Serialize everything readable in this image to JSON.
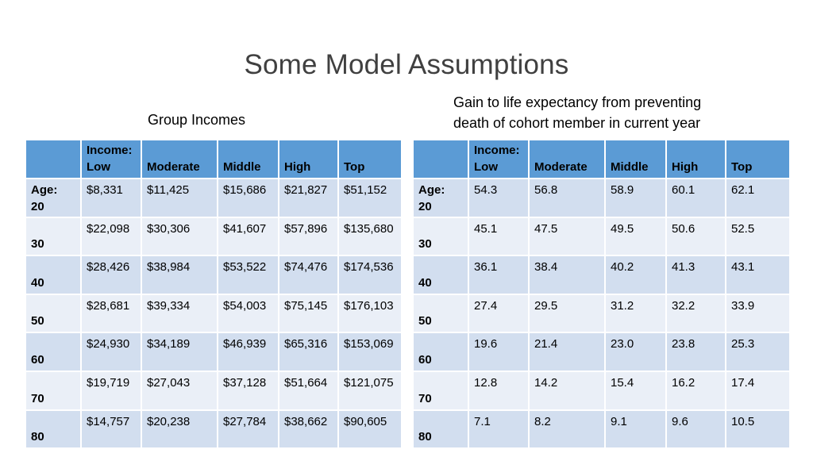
{
  "title": "Some Model Assumptions",
  "left": {
    "caption": "Group Incomes",
    "headers": [
      {
        "line1": "",
        "line2": ""
      },
      {
        "line1": "Income:",
        "line2": "Low"
      },
      {
        "line1": "",
        "line2": "Moderate"
      },
      {
        "line1": "",
        "line2": "Middle"
      },
      {
        "line1": "",
        "line2": "High"
      },
      {
        "line1": "",
        "line2": "Top"
      }
    ],
    "rows": [
      {
        "age_label": "Age:",
        "age": "20",
        "values": [
          "$8,331",
          "$11,425",
          "$15,686",
          "$21,827",
          "$51,152"
        ]
      },
      {
        "age_label": "",
        "age": "30",
        "values": [
          "$22,098",
          "$30,306",
          "$41,607",
          "$57,896",
          "$135,680"
        ]
      },
      {
        "age_label": "",
        "age": "40",
        "values": [
          "$28,426",
          "$38,984",
          "$53,522",
          "$74,476",
          "$174,536"
        ]
      },
      {
        "age_label": "",
        "age": "50",
        "values": [
          "$28,681",
          "$39,334",
          "$54,003",
          "$75,145",
          "$176,103"
        ]
      },
      {
        "age_label": "",
        "age": "60",
        "values": [
          "$24,930",
          "$34,189",
          "$46,939",
          "$65,316",
          "$153,069"
        ]
      },
      {
        "age_label": "",
        "age": "70",
        "values": [
          "$19,719",
          "$27,043",
          "$37,128",
          "$51,664",
          "$121,075"
        ]
      },
      {
        "age_label": "",
        "age": "80",
        "values": [
          "$14,757",
          "$20,238",
          "$27,784",
          "$38,662",
          "$90,605"
        ]
      }
    ]
  },
  "right": {
    "caption_line1": "Gain to life expectancy from preventing",
    "caption_line2": "death of cohort member in current year",
    "headers": [
      {
        "line1": "",
        "line2": ""
      },
      {
        "line1": "Income:",
        "line2": "Low"
      },
      {
        "line1": "",
        "line2": "Moderate"
      },
      {
        "line1": "",
        "line2": "Middle"
      },
      {
        "line1": "",
        "line2": "High"
      },
      {
        "line1": "",
        "line2": "Top"
      }
    ],
    "rows": [
      {
        "age_label": "Age:",
        "age": "20",
        "values": [
          "54.3",
          "56.8",
          "58.9",
          "60.1",
          "62.1"
        ]
      },
      {
        "age_label": "",
        "age": "30",
        "values": [
          "45.1",
          "47.5",
          "49.5",
          "50.6",
          "52.5"
        ]
      },
      {
        "age_label": "",
        "age": "40",
        "values": [
          "36.1",
          "38.4",
          "40.2",
          "41.3",
          "43.1"
        ]
      },
      {
        "age_label": "",
        "age": "50",
        "values": [
          "27.4",
          "29.5",
          "31.2",
          "32.2",
          "33.9"
        ]
      },
      {
        "age_label": "",
        "age": "60",
        "values": [
          "19.6",
          "21.4",
          "23.0",
          "23.8",
          "25.3"
        ]
      },
      {
        "age_label": "",
        "age": "70",
        "values": [
          "12.8",
          "14.2",
          "15.4",
          "16.2",
          "17.4"
        ]
      },
      {
        "age_label": "",
        "age": "80",
        "values": [
          "7.1",
          "8.2",
          "9.1",
          "9.6",
          "10.5"
        ]
      }
    ]
  }
}
